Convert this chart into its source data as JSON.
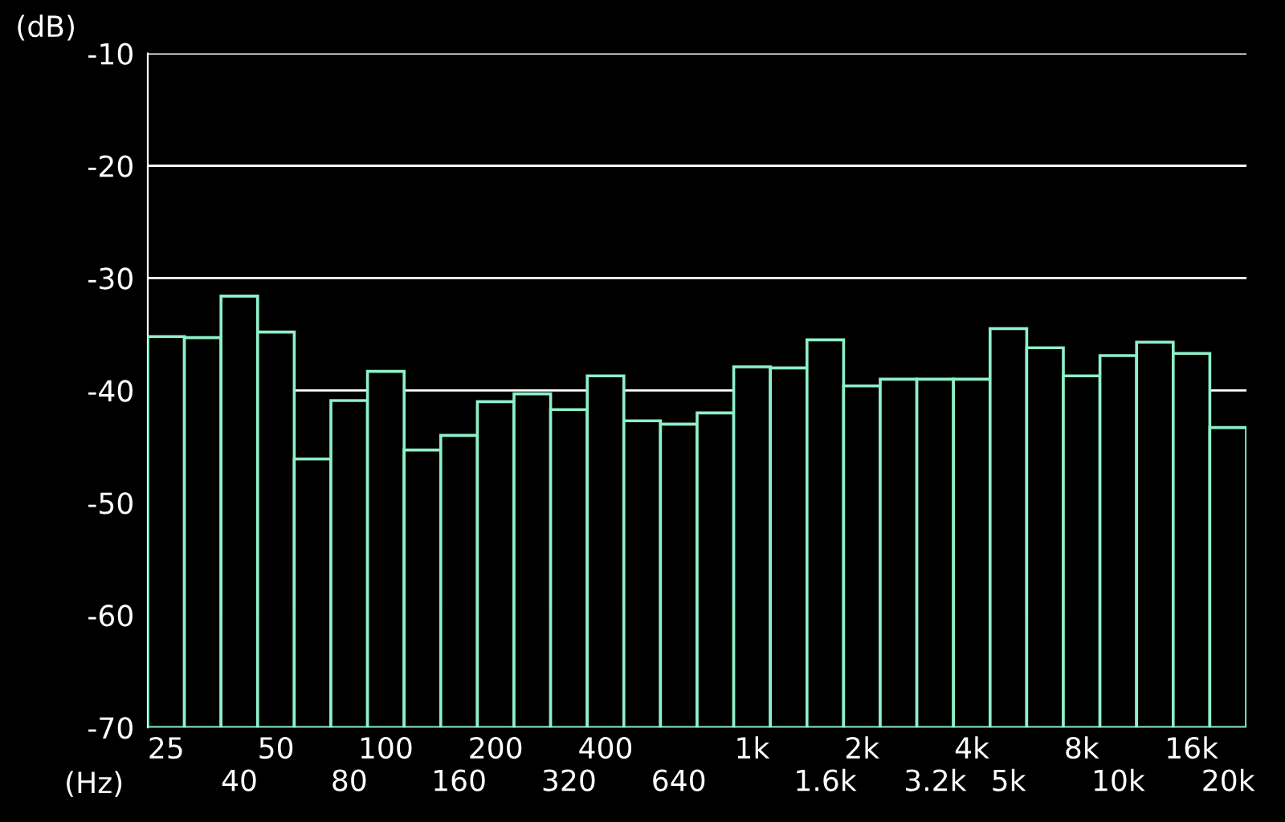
{
  "chart_data": {
    "type": "bar",
    "ylabel": "(dB)",
    "xlabel": "(Hz)",
    "categories": [
      "25",
      null,
      "40",
      "50",
      null,
      "80",
      "100",
      null,
      "160",
      "200",
      null,
      "320",
      "400",
      null,
      "640",
      null,
      "1k",
      null,
      "1.6k",
      "2k",
      null,
      "3.2k",
      "4k",
      "5k",
      null,
      "8k",
      "10k",
      null,
      "16k",
      "20k"
    ],
    "base": [
      -70,
      -70,
      -70,
      -70,
      -70,
      -70,
      -70,
      -70,
      -70,
      -70,
      -70,
      -70,
      -70,
      -70,
      -70,
      -70,
      -70,
      -70,
      -70,
      -70,
      -70,
      -70,
      -70,
      -70,
      -70,
      -70,
      -70,
      -70,
      -70,
      -70
    ],
    "values": [
      34.8,
      34.7,
      38.4,
      35.2,
      23.9,
      29.1,
      31.7,
      24.7,
      26.0,
      29.0,
      29.7,
      28.3,
      31.3,
      27.3,
      27.0,
      28.0,
      32.1,
      32.0,
      34.5,
      30.4,
      31.0,
      31.0,
      31.0,
      35.5,
      33.8,
      31.3,
      33.1,
      34.3,
      33.3,
      26.7
    ],
    "color": "#8ef0c8",
    "ylim": [
      -70,
      -10
    ],
    "yticks": [
      -10,
      -20,
      -30,
      -40,
      -50,
      -60,
      -70
    ],
    "grid": "y"
  }
}
